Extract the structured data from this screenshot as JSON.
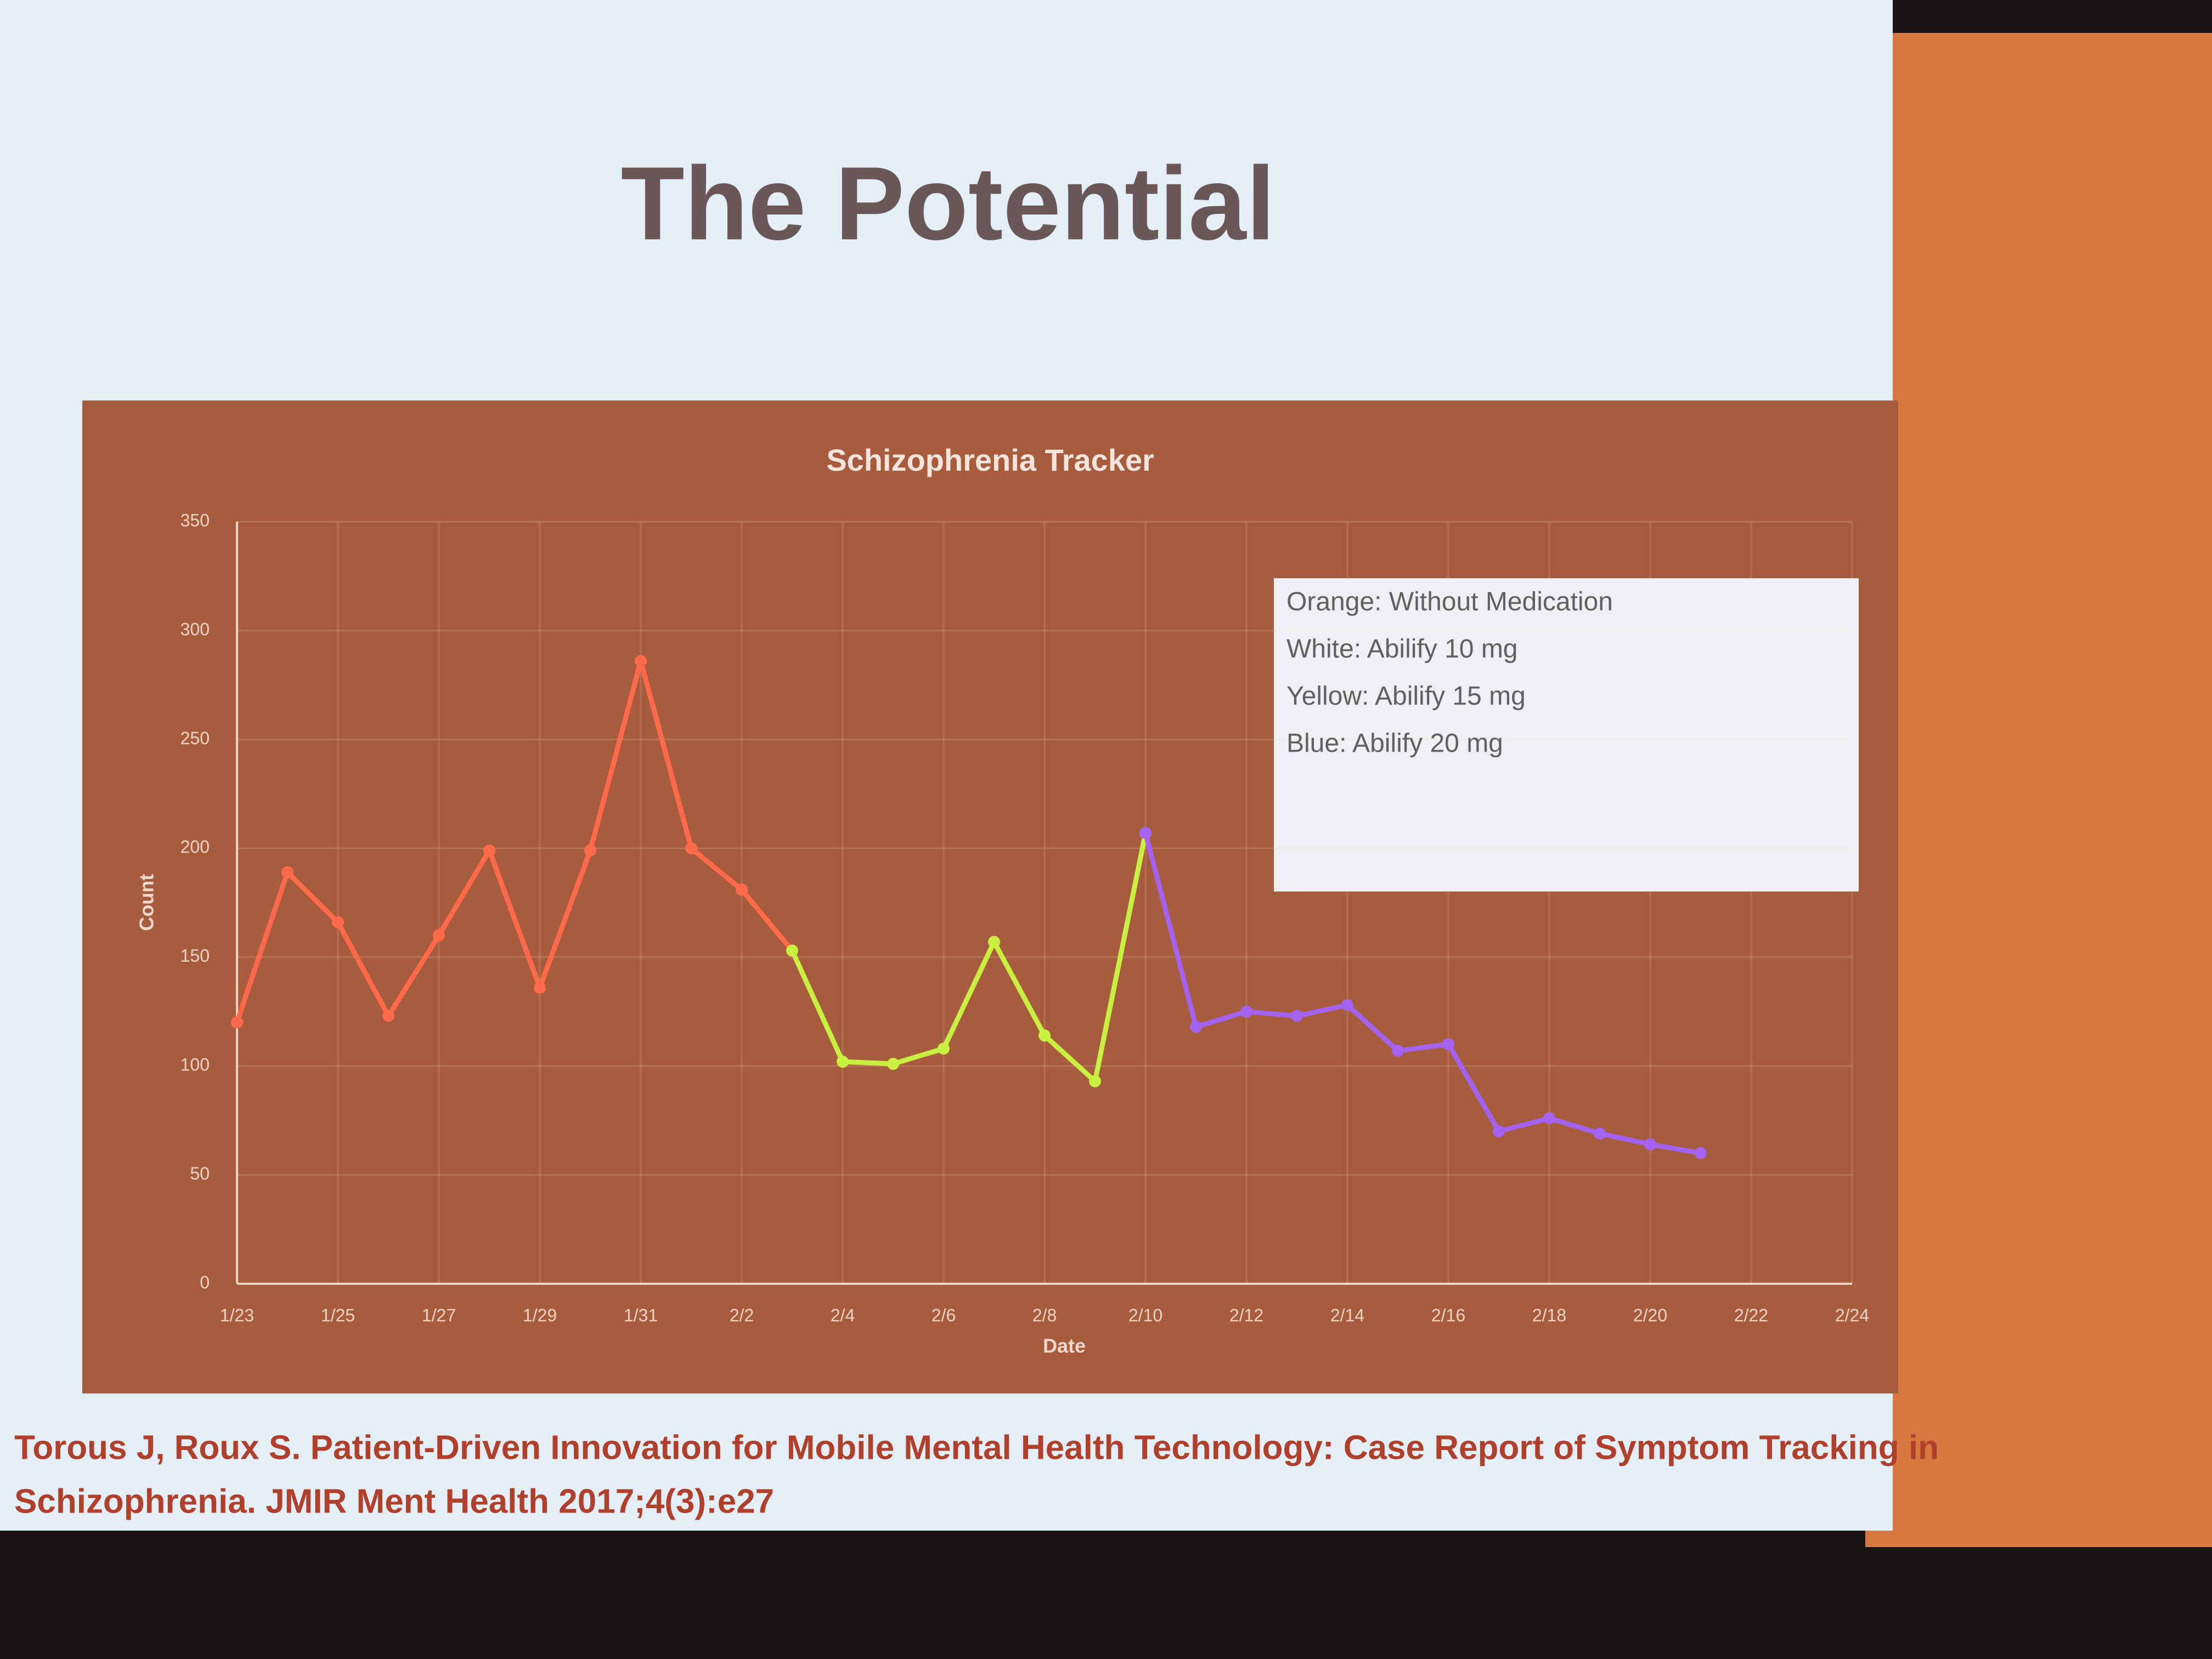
{
  "slide": {
    "title": "The Potential",
    "citation": [
      "Torous J, Roux S. Patient-Driven Innovation for Mobile Mental Health Technology: Case Report of Symptom Tracking in",
      "Schizophrenia. JMIR Ment Health 2017;4(3):e27"
    ]
  },
  "chart_data": {
    "type": "line",
    "title": "Schizophrenia Tracker",
    "x_label": "Date",
    "y_label": "Count",
    "categories": [
      "1/23",
      null,
      "1/25",
      null,
      "1/27",
      null,
      "1/29",
      null,
      "1/31",
      null,
      "2/2",
      null,
      "2/4",
      null,
      "2/6",
      null,
      "2/8",
      null,
      "2/10",
      null,
      "2/12",
      null,
      "2/14",
      null,
      "2/16",
      null,
      "2/18",
      null,
      "2/20",
      null,
      "2/22",
      null,
      "2/24"
    ],
    "series": [
      {
        "name": "Orange: Without Medication",
        "color": "#ff6a4a",
        "values": [
          120,
          189,
          166,
          123,
          160,
          199,
          136,
          199,
          286,
          200,
          181,
          153,
          null,
          null,
          null,
          null,
          null,
          null,
          null,
          null,
          null,
          null,
          null,
          null,
          null,
          null,
          null,
          null,
          null,
          null,
          null,
          null,
          null
        ]
      },
      {
        "name": "White: Abilify 10 mg",
        "color": "#eeeef4",
        "values": [
          null,
          null,
          null,
          null,
          null,
          null,
          null,
          null,
          null,
          null,
          null,
          null,
          null,
          null,
          null,
          null,
          null,
          null,
          207,
          null,
          null,
          null,
          null,
          null,
          null,
          null,
          null,
          null,
          null,
          null,
          null,
          null,
          null
        ]
      },
      {
        "name": "Yellow: Abilify 15 mg",
        "color": "#c8f040",
        "values": [
          null,
          null,
          null,
          null,
          null,
          null,
          null,
          null,
          null,
          null,
          null,
          153,
          102,
          101,
          108,
          157,
          114,
          93,
          207,
          null,
          null,
          null,
          null,
          null,
          null,
          null,
          null,
          null,
          null,
          null,
          null,
          null,
          null
        ]
      },
      {
        "name": "Blue: Abilify 20 mg",
        "color": "#a462f0",
        "values": [
          null,
          null,
          null,
          null,
          null,
          null,
          null,
          null,
          null,
          null,
          null,
          null,
          null,
          null,
          null,
          null,
          null,
          null,
          207,
          118,
          125,
          123,
          128,
          107,
          110,
          70,
          76,
          69,
          64,
          60,
          null,
          null,
          null
        ]
      }
    ],
    "ylim": [
      0,
      350
    ],
    "yticks": [
      0,
      50,
      100,
      150,
      200,
      250,
      300,
      350
    ],
    "grid": true
  }
}
